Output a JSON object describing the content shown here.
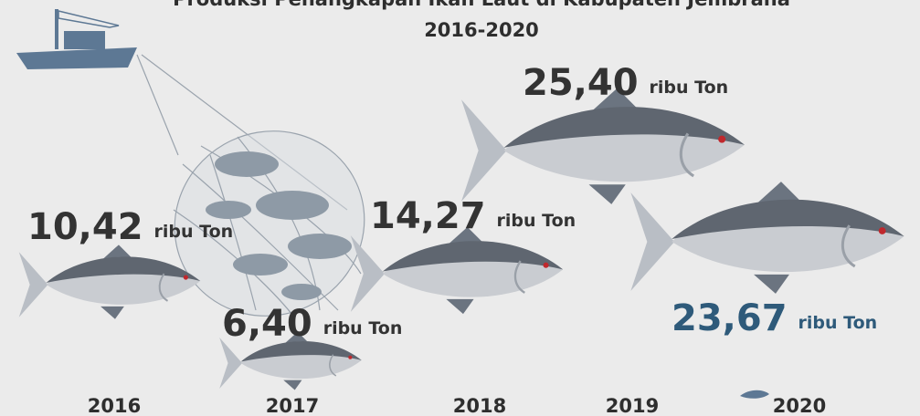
{
  "chart_data": {
    "type": "pictorial",
    "title": "Produksi Penangkapan Ikan Laut di Kabupaten Jembrana",
    "subtitle": "2016-2020",
    "categories": [
      "2016",
      "2017",
      "2018",
      "2019",
      "2020"
    ],
    "values": [
      10.42,
      6.4,
      14.27,
      25.4,
      23.67
    ],
    "value_labels": [
      "10,42",
      "6,40",
      "14,27",
      "25,40",
      "23,67"
    ],
    "unit": "ribu Ton",
    "color": "#c9ccd1",
    "highlight_color": "#2e5a7a"
  }
}
